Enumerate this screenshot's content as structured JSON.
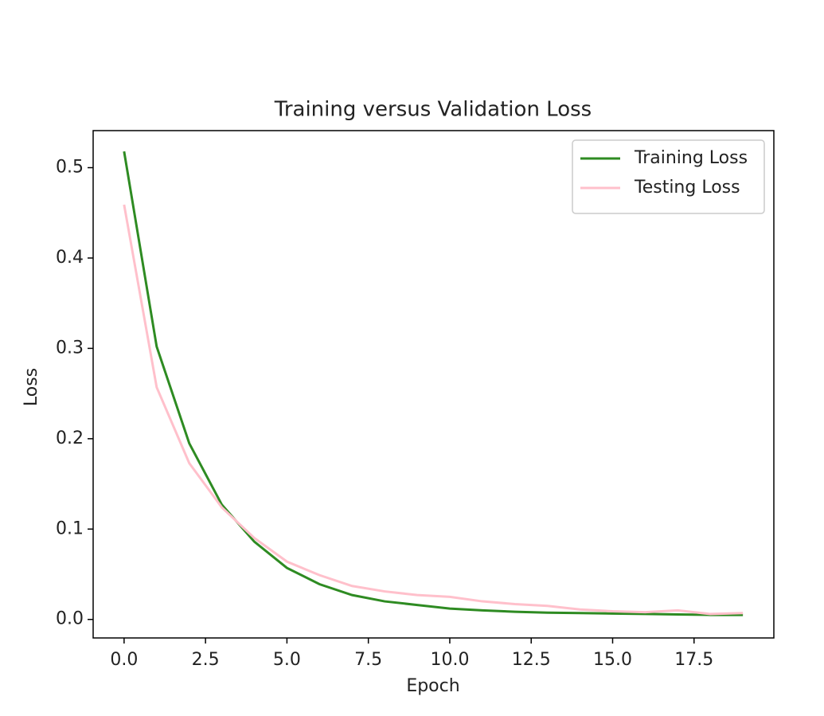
{
  "chart_data": {
    "type": "line",
    "title": "Training versus Validation Loss",
    "xlabel": "Epoch",
    "ylabel": "Loss",
    "x": [
      0,
      1,
      2,
      3,
      4,
      5,
      6,
      7,
      8,
      9,
      10,
      11,
      12,
      13,
      14,
      15,
      16,
      17,
      18,
      19
    ],
    "series": [
      {
        "name": "Training Loss",
        "color": "#2e8b22",
        "values": [
          0.518,
          0.302,
          0.195,
          0.127,
          0.086,
          0.057,
          0.039,
          0.027,
          0.02,
          0.016,
          0.012,
          0.01,
          0.0085,
          0.0075,
          0.007,
          0.0065,
          0.006,
          0.0055,
          0.005,
          0.005
        ]
      },
      {
        "name": "Testing Loss",
        "color": "#ffc0cb",
        "values": [
          0.459,
          0.257,
          0.173,
          0.124,
          0.09,
          0.064,
          0.049,
          0.037,
          0.031,
          0.027,
          0.025,
          0.02,
          0.017,
          0.015,
          0.011,
          0.009,
          0.008,
          0.01,
          0.006,
          0.007
        ]
      }
    ],
    "xlim": [
      -0.95,
      19.95
    ],
    "xticks": [
      {
        "value": 0,
        "label": "0.0"
      },
      {
        "value": 2.5,
        "label": "2.5"
      },
      {
        "value": 5,
        "label": "5.0"
      },
      {
        "value": 7.5,
        "label": "7.5"
      },
      {
        "value": 10,
        "label": "10.0"
      },
      {
        "value": 12.5,
        "label": "12.5"
      },
      {
        "value": 15,
        "label": "15.0"
      },
      {
        "value": 17.5,
        "label": "17.5"
      }
    ],
    "ylim": [
      -0.0205,
      0.541
    ],
    "yticks": [
      {
        "value": 0,
        "label": "0.0"
      },
      0.1,
      0.2,
      0.3,
      0.4,
      0.5
    ],
    "grid": false,
    "legend": "upper right"
  }
}
